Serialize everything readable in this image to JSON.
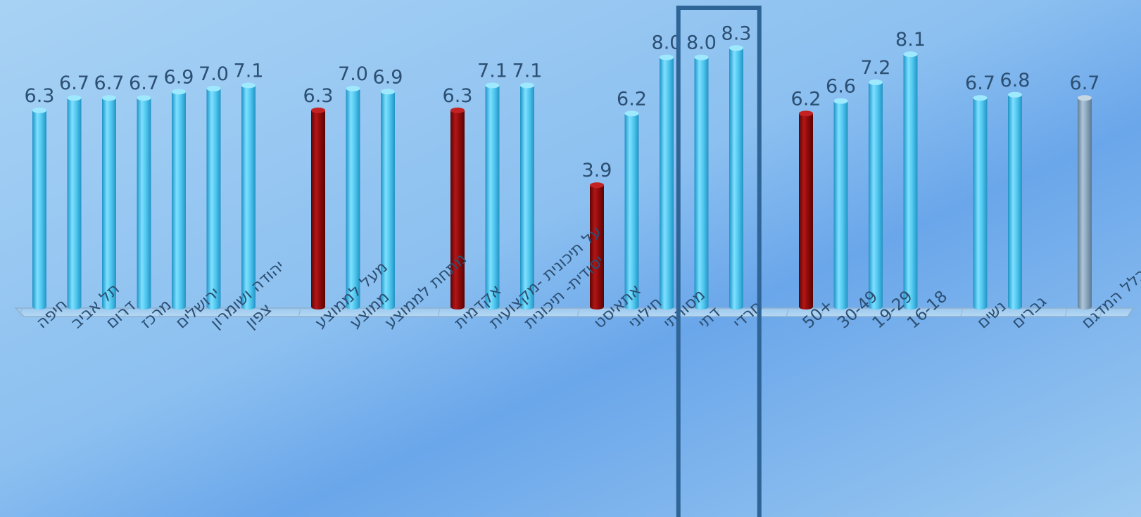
{
  "chart_data": {
    "type": "bar",
    "title": "",
    "xlabel": "",
    "ylabel": "",
    "ylim": [
      0,
      9
    ],
    "grid": false,
    "legend": "none",
    "colors": {
      "default": "#4fc6ee",
      "highlight": "#8b0a0a",
      "total": "#8aa6bd",
      "label": "#2c4f73",
      "box": "#2f6496"
    },
    "groups": [
      {
        "bars": [
          {
            "label": "חיפה",
            "value": 6.3,
            "kind": "default"
          },
          {
            "label": "תל אביב",
            "value": 6.7,
            "kind": "default"
          },
          {
            "label": "דרום",
            "value": 6.7,
            "kind": "default"
          },
          {
            "label": "מרכז",
            "value": 6.7,
            "kind": "default"
          },
          {
            "label": "ירושלים",
            "value": 6.9,
            "kind": "default"
          },
          {
            "label": "יהודה ושומרון",
            "value": 7.0,
            "kind": "default"
          },
          {
            "label": "צפון",
            "value": 7.1,
            "kind": "default"
          }
        ]
      },
      {
        "bars": [
          {
            "label": "מעל לממוצע",
            "value": 6.3,
            "kind": "highlight"
          },
          {
            "label": "ממוצע",
            "value": 7.0,
            "kind": "default"
          },
          {
            "label": "מתחת לממוצע",
            "value": 6.9,
            "kind": "default"
          }
        ]
      },
      {
        "bars": [
          {
            "label": "אקדמית",
            "value": 6.3,
            "kind": "highlight"
          },
          {
            "label": "על תיכונית -מקצועית",
            "value": 7.1,
            "kind": "default"
          },
          {
            "label": "יסודית- תיכונית",
            "value": 7.1,
            "kind": "default"
          }
        ]
      },
      {
        "bars": [
          {
            "label": "אתאיסט",
            "value": 3.9,
            "kind": "highlight"
          },
          {
            "label": "חילוני",
            "value": 6.2,
            "kind": "default"
          },
          {
            "label": "מסורתי",
            "value": 8.0,
            "kind": "default"
          },
          {
            "label": "דתי",
            "value": 8.0,
            "kind": "default",
            "boxed": true
          },
          {
            "label": "חרדי",
            "value": 8.3,
            "kind": "default",
            "boxed": true
          }
        ]
      },
      {
        "bars": [
          {
            "label": "+50",
            "value": 6.2,
            "kind": "highlight"
          },
          {
            "label": "30-49",
            "value": 6.6,
            "kind": "default"
          },
          {
            "label": "19-29",
            "value": 7.2,
            "kind": "default"
          },
          {
            "label": "16-18",
            "value": 8.1,
            "kind": "default"
          }
        ]
      },
      {
        "bars": [
          {
            "label": "נשים",
            "value": 6.7,
            "kind": "default"
          },
          {
            "label": "גברים",
            "value": 6.8,
            "kind": "default"
          }
        ]
      },
      {
        "bars": [
          {
            "label": "כלל המדגם",
            "value": 6.7,
            "kind": "total"
          }
        ]
      }
    ]
  }
}
